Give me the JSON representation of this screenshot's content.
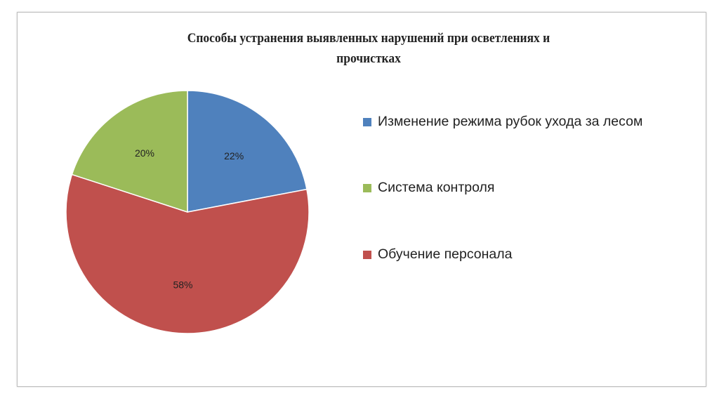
{
  "chart_data": {
    "type": "pie",
    "title_line1": "Способы устранения выявленных нарушений при осветлениях и",
    "title_line2": "прочистках",
    "legend_position": "right",
    "slices": [
      {
        "label": "Изменение режима рубок ухода за лесом",
        "value": 22,
        "data_label": "22%",
        "color": "#4f81bd"
      },
      {
        "label": "Обучение персонала",
        "value": 58,
        "data_label": "58%",
        "color": "#c0504d"
      },
      {
        "label": "Система контроля",
        "value": 20,
        "data_label": "20%",
        "color": "#9bbb59"
      }
    ],
    "legend": [
      {
        "label": "Изменение режима рубок ухода за лесом",
        "color": "#4f81bd"
      },
      {
        "label": "Система контроля",
        "color": "#9bbb59"
      },
      {
        "label": "Обучение персонала",
        "color": "#c0504d"
      }
    ]
  }
}
